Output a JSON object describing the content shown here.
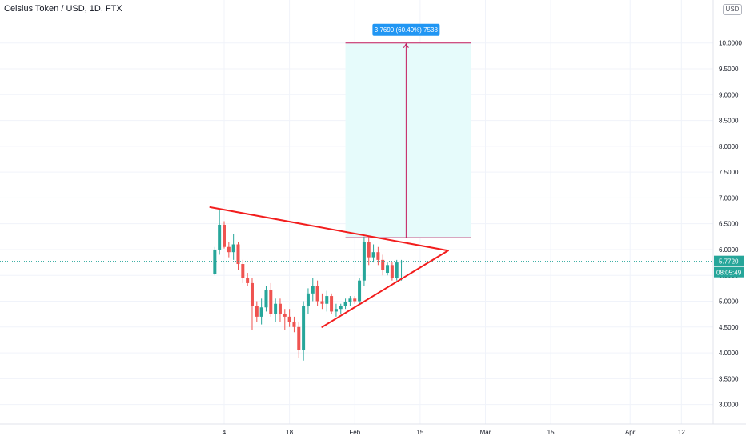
{
  "header": {
    "symbol": "Celsius Token / USD, 1D, FTX",
    "currency": "USD"
  },
  "chart_data": {
    "type": "candlestick",
    "title": "Celsius Token / USD, 1D, FTX",
    "ylim": [
      2.7,
      10.6
    ],
    "y_ticks": [
      "3.0000",
      "3.5000",
      "4.0000",
      "4.5000",
      "5.0000",
      "5.5000",
      "6.0000",
      "6.5000",
      "7.0000",
      "7.5000",
      "8.0000",
      "8.5000",
      "9.0000",
      "9.5000",
      "10.0000"
    ],
    "x_ticks": [
      {
        "label": "4",
        "day": 0
      },
      {
        "label": "18",
        "day": 14
      },
      {
        "label": "Feb",
        "day": 28
      },
      {
        "label": "15",
        "day": 42
      },
      {
        "label": "Mar",
        "day": 56
      },
      {
        "label": "15",
        "day": 70
      },
      {
        "label": "Apr",
        "day": 87
      },
      {
        "label": "12",
        "day": 98
      }
    ],
    "candles": [
      {
        "day": -2,
        "o": 5.52,
        "h": 6.05,
        "l": 5.5,
        "c": 6.0
      },
      {
        "day": -1,
        "o": 6.0,
        "h": 6.78,
        "l": 5.9,
        "c": 6.48
      },
      {
        "day": 0,
        "o": 6.48,
        "h": 6.55,
        "l": 6.02,
        "c": 6.05
      },
      {
        "day": 1,
        "o": 6.05,
        "h": 6.15,
        "l": 5.85,
        "c": 5.95
      },
      {
        "day": 2,
        "o": 5.95,
        "h": 6.3,
        "l": 5.8,
        "c": 6.1
      },
      {
        "day": 3,
        "o": 6.1,
        "h": 6.15,
        "l": 5.6,
        "c": 5.72
      },
      {
        "day": 4,
        "o": 5.72,
        "h": 5.8,
        "l": 5.35,
        "c": 5.45
      },
      {
        "day": 5,
        "o": 5.45,
        "h": 5.55,
        "l": 5.3,
        "c": 5.35
      },
      {
        "day": 6,
        "o": 5.35,
        "h": 5.45,
        "l": 4.45,
        "c": 4.9
      },
      {
        "day": 7,
        "o": 4.9,
        "h": 5.0,
        "l": 4.6,
        "c": 4.7
      },
      {
        "day": 8,
        "o": 4.7,
        "h": 5.05,
        "l": 4.55,
        "c": 4.88
      },
      {
        "day": 9,
        "o": 4.88,
        "h": 5.3,
        "l": 4.8,
        "c": 5.22
      },
      {
        "day": 10,
        "o": 5.22,
        "h": 5.35,
        "l": 4.7,
        "c": 4.75
      },
      {
        "day": 11,
        "o": 4.75,
        "h": 5.05,
        "l": 4.6,
        "c": 4.95
      },
      {
        "day": 12,
        "o": 4.95,
        "h": 5.05,
        "l": 4.6,
        "c": 4.75
      },
      {
        "day": 13,
        "o": 4.75,
        "h": 4.85,
        "l": 4.45,
        "c": 4.7
      },
      {
        "day": 14,
        "o": 4.7,
        "h": 4.85,
        "l": 4.5,
        "c": 4.6
      },
      {
        "day": 15,
        "o": 4.6,
        "h": 4.7,
        "l": 4.4,
        "c": 4.5
      },
      {
        "day": 16,
        "o": 4.5,
        "h": 4.6,
        "l": 3.9,
        "c": 4.05
      },
      {
        "day": 17,
        "o": 4.05,
        "h": 5.0,
        "l": 3.85,
        "c": 4.9
      },
      {
        "day": 18,
        "o": 4.9,
        "h": 5.25,
        "l": 4.75,
        "c": 5.15
      },
      {
        "day": 19,
        "o": 5.15,
        "h": 5.45,
        "l": 5.0,
        "c": 5.3
      },
      {
        "day": 20,
        "o": 5.3,
        "h": 5.4,
        "l": 4.9,
        "c": 5.0
      },
      {
        "day": 21,
        "o": 5.0,
        "h": 5.15,
        "l": 4.85,
        "c": 4.95
      },
      {
        "day": 22,
        "o": 4.95,
        "h": 5.2,
        "l": 4.8,
        "c": 5.1
      },
      {
        "day": 23,
        "o": 5.1,
        "h": 5.15,
        "l": 4.75,
        "c": 4.8
      },
      {
        "day": 24,
        "o": 4.8,
        "h": 4.95,
        "l": 4.7,
        "c": 4.85
      },
      {
        "day": 25,
        "o": 4.85,
        "h": 4.95,
        "l": 4.75,
        "c": 4.9
      },
      {
        "day": 26,
        "o": 4.9,
        "h": 5.05,
        "l": 4.85,
        "c": 4.98
      },
      {
        "day": 27,
        "o": 4.98,
        "h": 5.1,
        "l": 4.9,
        "c": 5.05
      },
      {
        "day": 28,
        "o": 5.05,
        "h": 5.1,
        "l": 4.95,
        "c": 5.0
      },
      {
        "day": 29,
        "o": 5.0,
        "h": 5.45,
        "l": 4.95,
        "c": 5.4
      },
      {
        "day": 30,
        "o": 5.4,
        "h": 6.25,
        "l": 5.3,
        "c": 6.15
      },
      {
        "day": 31,
        "o": 6.15,
        "h": 6.25,
        "l": 5.7,
        "c": 5.85
      },
      {
        "day": 32,
        "o": 5.85,
        "h": 6.1,
        "l": 5.75,
        "c": 5.95
      },
      {
        "day": 33,
        "o": 5.95,
        "h": 6.05,
        "l": 5.7,
        "c": 5.8
      },
      {
        "day": 34,
        "o": 5.8,
        "h": 5.9,
        "l": 5.5,
        "c": 5.6
      },
      {
        "day": 35,
        "o": 5.55,
        "h": 5.75,
        "l": 5.5,
        "c": 5.7
      },
      {
        "day": 36,
        "o": 5.7,
        "h": 5.75,
        "l": 5.4,
        "c": 5.45
      },
      {
        "day": 37,
        "o": 5.45,
        "h": 5.8,
        "l": 5.4,
        "c": 5.75
      },
      {
        "day": 38,
        "o": 5.75,
        "h": 5.8,
        "l": 5.4,
        "c": 5.77
      }
    ],
    "bull_color": "#26a69a",
    "bear_color": "#ef5350",
    "trendlines": [
      {
        "from": {
          "day": -3,
          "y": 6.82
        },
        "to": {
          "day": 48,
          "y": 5.98
        },
        "color": "#f21d1d"
      },
      {
        "from": {
          "day": 21,
          "y": 4.5
        },
        "to": {
          "day": 48,
          "y": 5.98
        },
        "color": "#f21d1d"
      }
    ],
    "measure": {
      "from_day": 26,
      "to_day": 53,
      "low": 6.23,
      "high": 10.0,
      "arrow_day": 39,
      "label": "3.7690 (60.49%) 7538",
      "fill": "#e6fbfb",
      "line_color": "#c2185b",
      "label_bg": "#2196f3"
    },
    "last_price": {
      "value": 5.772,
      "label": "5.7720",
      "countdown": "08:05:49",
      "color": "#26a69a"
    }
  }
}
